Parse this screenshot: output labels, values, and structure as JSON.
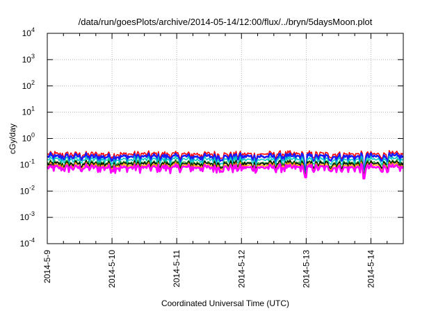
{
  "chart_data": {
    "type": "line",
    "title": "/data/run/goesPlots/archive/2014-05-14/12:00/flux/../bryn/5daysMoon.plot",
    "xlabel": "Coordinated Universal Time (UTC)",
    "ylabel": "cGy/day",
    "yscale": "log",
    "ylim": [
      0.0001,
      10000
    ],
    "xlim": [
      "2014-05-09T00:00",
      "2014-05-14T12:00"
    ],
    "grid": true,
    "x_ticks": [
      "2014-5-9",
      "2014-5-10",
      "2014-5-11",
      "2014-5-12",
      "2014-5-13",
      "2014-5-14"
    ],
    "y_ticks": [
      {
        "base": "10",
        "exp": "-4"
      },
      {
        "base": "10",
        "exp": "-3"
      },
      {
        "base": "10",
        "exp": "-2"
      },
      {
        "base": "10",
        "exp": "-1"
      },
      {
        "base": "10",
        "exp": "0"
      },
      {
        "base": "10",
        "exp": "1"
      },
      {
        "base": "10",
        "exp": "2"
      },
      {
        "base": "10",
        "exp": "3"
      },
      {
        "base": "10",
        "exp": "4"
      }
    ],
    "series": [
      {
        "color": "#ff0000",
        "typical": 0.26,
        "low_dips": [
          [
            "2014-05-12T23:50",
            0.06
          ],
          [
            "2014-05-13T21:20",
            0.07
          ]
        ]
      },
      {
        "color": "#1a1aff",
        "typical": 0.21,
        "low_dips": [
          [
            "2014-05-12T23:50",
            0.055
          ],
          [
            "2014-05-13T21:20",
            0.06
          ]
        ]
      },
      {
        "color": "#00c8c8",
        "typical": 0.16,
        "low_dips": [
          [
            "2014-05-12T23:50",
            0.05
          ],
          [
            "2014-05-13T21:20",
            0.055
          ]
        ]
      },
      {
        "color": "#2ca02c",
        "typical": 0.12,
        "low_dips": [
          [
            "2014-05-12T23:50",
            0.045
          ],
          [
            "2014-05-13T21:20",
            0.05
          ]
        ]
      },
      {
        "color": "#000000",
        "typical": 0.11,
        "low_dips": [
          [
            "2014-05-12T23:50",
            0.045
          ],
          [
            "2014-05-13T21:20",
            0.045
          ]
        ]
      },
      {
        "color": "#ffa500",
        "typical": 0.095,
        "low_dips": [
          [
            "2014-05-12T23:50",
            0.04
          ],
          [
            "2014-05-13T21:20",
            0.04
          ]
        ]
      },
      {
        "color": "#ff00ff",
        "typical": 0.08,
        "low_dips": [
          [
            "2014-05-12T23:50",
            0.033
          ],
          [
            "2014-05-13T21:20",
            0.03
          ]
        ]
      }
    ]
  }
}
